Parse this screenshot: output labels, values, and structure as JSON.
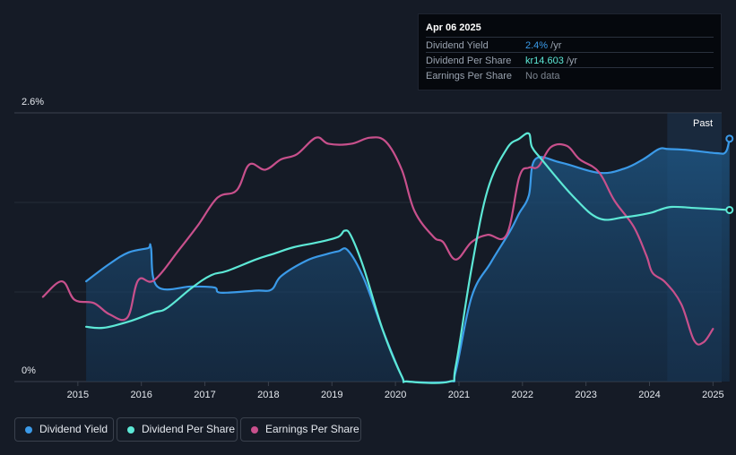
{
  "tooltip": {
    "date": "Apr 06 2025",
    "rows": [
      {
        "label": "Dividend Yield",
        "value": "2.4%",
        "unit": " /yr",
        "color": "#3b9ae8"
      },
      {
        "label": "Dividend Per Share",
        "value": "kr14.603",
        "unit": " /yr",
        "color": "#5de8d6"
      },
      {
        "label": "Earnings Per Share",
        "value": "No data",
        "unit": "",
        "color": "#7d8590"
      }
    ]
  },
  "past_label": "Past",
  "legend": [
    {
      "label": "Dividend Yield",
      "color": "#3b9ae8"
    },
    {
      "label": "Dividend Per Share",
      "color": "#5de8d6"
    },
    {
      "label": "Earnings Per Share",
      "color": "#c8508c"
    }
  ],
  "chart_data": {
    "type": "line",
    "ylim": [
      0,
      2.6
    ],
    "y_tick_labels": [
      "2.6%",
      "0%"
    ],
    "x_tick_labels": [
      "2015",
      "2016",
      "2017",
      "2018",
      "2019",
      "2020",
      "2021",
      "2022",
      "2023",
      "2024",
      "2025"
    ],
    "grid": true,
    "series": [
      {
        "name": "Dividend Yield",
        "color": "#3b9ae8",
        "filled": true,
        "points": [
          [
            2015.13,
            0.97
          ],
          [
            2015.5,
            1.14
          ],
          [
            2015.8,
            1.25
          ],
          [
            2016.1,
            1.29
          ],
          [
            2016.15,
            1.3
          ],
          [
            2016.25,
            0.92
          ],
          [
            2016.8,
            0.92
          ],
          [
            2017.15,
            0.91
          ],
          [
            2017.25,
            0.86
          ],
          [
            2017.8,
            0.88
          ],
          [
            2018.05,
            0.89
          ],
          [
            2018.2,
            1.02
          ],
          [
            2018.6,
            1.17
          ],
          [
            2018.9,
            1.23
          ],
          [
            2019.1,
            1.26
          ],
          [
            2019.25,
            1.27
          ],
          [
            2019.5,
            1.0
          ],
          [
            2019.8,
            0.5
          ],
          [
            2020.1,
            0.05
          ],
          [
            2020.2,
            0.0
          ],
          [
            2020.85,
            0.0
          ],
          [
            2020.95,
            0.1
          ],
          [
            2021.2,
            0.82
          ],
          [
            2021.5,
            1.15
          ],
          [
            2021.8,
            1.45
          ],
          [
            2021.95,
            1.63
          ],
          [
            2022.1,
            1.8
          ],
          [
            2022.2,
            2.15
          ],
          [
            2022.6,
            2.12
          ],
          [
            2023.2,
            2.02
          ],
          [
            2023.6,
            2.06
          ],
          [
            2023.9,
            2.15
          ],
          [
            2024.15,
            2.25
          ],
          [
            2024.3,
            2.25
          ],
          [
            2024.6,
            2.24
          ],
          [
            2025.05,
            2.21
          ],
          [
            2025.2,
            2.22
          ],
          [
            2025.26,
            2.35
          ]
        ]
      },
      {
        "name": "Dividend Per Share",
        "color": "#5de8d6",
        "filled": false,
        "points": [
          [
            2015.13,
            0.53
          ],
          [
            2015.4,
            0.52
          ],
          [
            2015.8,
            0.58
          ],
          [
            2016.2,
            0.67
          ],
          [
            2016.4,
            0.71
          ],
          [
            2016.8,
            0.91
          ],
          [
            2017.1,
            1.03
          ],
          [
            2017.35,
            1.07
          ],
          [
            2017.8,
            1.18
          ],
          [
            2018.1,
            1.24
          ],
          [
            2018.4,
            1.3
          ],
          [
            2018.8,
            1.35
          ],
          [
            2019.1,
            1.4
          ],
          [
            2019.2,
            1.46
          ],
          [
            2019.3,
            1.41
          ],
          [
            2019.5,
            1.1
          ],
          [
            2019.8,
            0.5
          ],
          [
            2020.1,
            0.05
          ],
          [
            2020.2,
            0.0
          ],
          [
            2020.85,
            0.0
          ],
          [
            2020.95,
            0.15
          ],
          [
            2021.2,
            1.1
          ],
          [
            2021.45,
            1.85
          ],
          [
            2021.75,
            2.25
          ],
          [
            2021.95,
            2.35
          ],
          [
            2022.1,
            2.4
          ],
          [
            2022.15,
            2.27
          ],
          [
            2022.3,
            2.15
          ],
          [
            2022.8,
            1.79
          ],
          [
            2023.2,
            1.58
          ],
          [
            2023.6,
            1.59
          ],
          [
            2024.0,
            1.63
          ],
          [
            2024.15,
            1.66
          ],
          [
            2024.35,
            1.69
          ],
          [
            2024.7,
            1.68
          ],
          [
            2025.0,
            1.67
          ],
          [
            2025.26,
            1.66
          ]
        ]
      },
      {
        "name": "Earnings Per Share",
        "color": "#c8508c",
        "filled": false,
        "points": [
          [
            2014.45,
            0.82
          ],
          [
            2014.75,
            0.97
          ],
          [
            2014.95,
            0.79
          ],
          [
            2015.25,
            0.76
          ],
          [
            2015.5,
            0.65
          ],
          [
            2015.78,
            0.62
          ],
          [
            2015.95,
            0.98
          ],
          [
            2016.2,
            0.98
          ],
          [
            2016.6,
            1.28
          ],
          [
            2016.9,
            1.52
          ],
          [
            2017.2,
            1.78
          ],
          [
            2017.5,
            1.85
          ],
          [
            2017.7,
            2.1
          ],
          [
            2017.95,
            2.05
          ],
          [
            2018.2,
            2.15
          ],
          [
            2018.45,
            2.2
          ],
          [
            2018.75,
            2.36
          ],
          [
            2018.95,
            2.3
          ],
          [
            2019.3,
            2.3
          ],
          [
            2019.6,
            2.36
          ],
          [
            2019.85,
            2.32
          ],
          [
            2020.1,
            2.05
          ],
          [
            2020.3,
            1.65
          ],
          [
            2020.6,
            1.4
          ],
          [
            2020.75,
            1.35
          ],
          [
            2020.95,
            1.18
          ],
          [
            2021.2,
            1.35
          ],
          [
            2021.45,
            1.42
          ],
          [
            2021.75,
            1.42
          ],
          [
            2021.95,
            1.98
          ],
          [
            2022.1,
            2.07
          ],
          [
            2022.25,
            2.08
          ],
          [
            2022.45,
            2.27
          ],
          [
            2022.7,
            2.28
          ],
          [
            2022.9,
            2.15
          ],
          [
            2023.2,
            2.03
          ],
          [
            2023.45,
            1.75
          ],
          [
            2023.75,
            1.5
          ],
          [
            2023.95,
            1.22
          ],
          [
            2024.05,
            1.05
          ],
          [
            2024.25,
            0.96
          ],
          [
            2024.5,
            0.75
          ],
          [
            2024.7,
            0.4
          ],
          [
            2024.85,
            0.38
          ],
          [
            2025.0,
            0.51
          ]
        ]
      }
    ],
    "end_markers": [
      {
        "series": "Dividend Yield",
        "x": 2025.26,
        "y": 2.35
      },
      {
        "series": "Dividend Per Share",
        "x": 2025.26,
        "y": 1.66
      }
    ],
    "forecast_region_start": 2024.28
  }
}
